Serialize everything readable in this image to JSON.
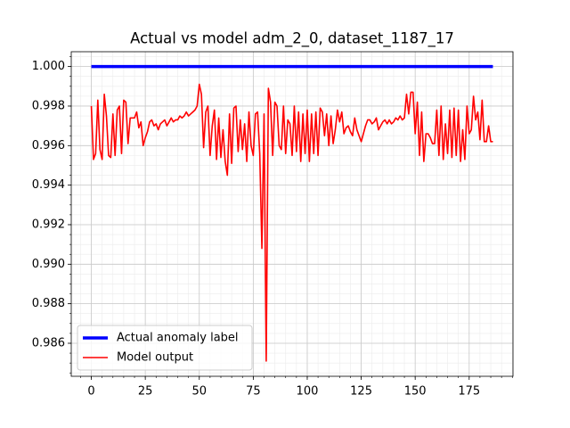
{
  "chart_data": {
    "type": "line",
    "title": "Actual vs model adm_2_0, dataset_1187_17",
    "x": [
      0,
      1,
      2,
      3,
      4,
      5,
      6,
      7,
      8,
      9,
      10,
      11,
      12,
      13,
      14,
      15,
      16,
      17,
      18,
      19,
      20,
      21,
      22,
      23,
      24,
      25,
      26,
      27,
      28,
      29,
      30,
      31,
      32,
      33,
      34,
      35,
      36,
      37,
      38,
      39,
      40,
      41,
      42,
      43,
      44,
      45,
      46,
      47,
      48,
      49,
      50,
      51,
      52,
      53,
      54,
      55,
      56,
      57,
      58,
      59,
      60,
      61,
      62,
      63,
      64,
      65,
      66,
      67,
      68,
      69,
      70,
      71,
      72,
      73,
      74,
      75,
      76,
      77,
      78,
      79,
      80,
      81,
      82,
      83,
      84,
      85,
      86,
      87,
      88,
      89,
      90,
      91,
      92,
      93,
      94,
      95,
      96,
      97,
      98,
      99,
      100,
      101,
      102,
      103,
      104,
      105,
      106,
      107,
      108,
      109,
      110,
      111,
      112,
      113,
      114,
      115,
      116,
      117,
      118,
      119,
      120,
      121,
      122,
      123,
      124,
      125,
      126,
      127,
      128,
      129,
      130,
      131,
      132,
      133,
      134,
      135,
      136,
      137,
      138,
      139,
      140,
      141,
      142,
      143,
      144,
      145,
      146,
      147,
      148,
      149,
      150,
      151,
      152,
      153,
      154,
      155,
      156,
      157,
      158,
      159,
      160,
      161,
      162,
      163,
      164,
      165,
      166,
      167,
      168,
      169,
      170,
      171,
      172,
      173,
      174,
      175,
      176,
      177,
      178,
      179,
      180,
      181,
      182,
      183,
      184,
      185,
      186
    ],
    "series": [
      {
        "name": "Actual anomaly label",
        "color": "#0000ff",
        "values": [
          1,
          1,
          1,
          1,
          1,
          1,
          1,
          1,
          1,
          1,
          1,
          1,
          1,
          1,
          1,
          1,
          1,
          1,
          1,
          1,
          1,
          1,
          1,
          1,
          1,
          1,
          1,
          1,
          1,
          1,
          1,
          1,
          1,
          1,
          1,
          1,
          1,
          1,
          1,
          1,
          1,
          1,
          1,
          1,
          1,
          1,
          1,
          1,
          1,
          1,
          1,
          1,
          1,
          1,
          1,
          1,
          1,
          1,
          1,
          1,
          1,
          1,
          1,
          1,
          1,
          1,
          1,
          1,
          1,
          1,
          1,
          1,
          1,
          1,
          1,
          1,
          1,
          1,
          1,
          1,
          1,
          1,
          1,
          1,
          1,
          1,
          1,
          1,
          1,
          1,
          1,
          1,
          1,
          1,
          1,
          1,
          1,
          1,
          1,
          1,
          1,
          1,
          1,
          1,
          1,
          1,
          1,
          1,
          1,
          1,
          1,
          1,
          1,
          1,
          1,
          1,
          1,
          1,
          1,
          1,
          1,
          1,
          1,
          1,
          1,
          1,
          1,
          1,
          1,
          1,
          1,
          1,
          1,
          1,
          1,
          1,
          1,
          1,
          1,
          1,
          1,
          1,
          1,
          1,
          1,
          1,
          1,
          1,
          1,
          1,
          1,
          1,
          1,
          1,
          1,
          1,
          1,
          1,
          1,
          1,
          1,
          1,
          1,
          1,
          1,
          1,
          1,
          1,
          1,
          1,
          1,
          1,
          1,
          1,
          1,
          1,
          1,
          1,
          1,
          1,
          1,
          1,
          1,
          1,
          1,
          1,
          1
        ]
      },
      {
        "name": "Model output",
        "color": "#ff0000",
        "values": [
          0.998,
          0.9953,
          0.9956,
          0.9983,
          0.9958,
          0.9953,
          0.9986,
          0.9975,
          0.9955,
          0.9954,
          0.9976,
          0.9955,
          0.9978,
          0.998,
          0.9956,
          0.9983,
          0.9982,
          0.9961,
          0.9974,
          0.9974,
          0.9974,
          0.9977,
          0.9969,
          0.9972,
          0.996,
          0.9964,
          0.9967,
          0.9972,
          0.9973,
          0.997,
          0.9971,
          0.9968,
          0.9971,
          0.9972,
          0.9973,
          0.997,
          0.9972,
          0.9974,
          0.9972,
          0.9973,
          0.9973,
          0.9975,
          0.9974,
          0.9975,
          0.9977,
          0.9975,
          0.9976,
          0.9977,
          0.9978,
          0.998,
          0.9991,
          0.9986,
          0.9959,
          0.9977,
          0.998,
          0.9955,
          0.997,
          0.9978,
          0.9953,
          0.9974,
          0.9954,
          0.9968,
          0.9952,
          0.9945,
          0.9976,
          0.9951,
          0.9979,
          0.998,
          0.9957,
          0.9973,
          0.9958,
          0.9971,
          0.9952,
          0.9977,
          0.996,
          0.9955,
          0.9976,
          0.9977,
          0.9956,
          0.9908,
          0.9976,
          0.9851,
          0.9989,
          0.9982,
          0.9955,
          0.9982,
          0.998,
          0.996,
          0.9958,
          0.998,
          0.9956,
          0.9973,
          0.9971,
          0.9955,
          0.998,
          0.9957,
          0.9977,
          0.9952,
          0.9976,
          0.9956,
          0.9978,
          0.9952,
          0.9976,
          0.9956,
          0.9977,
          0.9955,
          0.9979,
          0.9977,
          0.9965,
          0.9976,
          0.996,
          0.9975,
          0.9961,
          0.9968,
          0.9978,
          0.9972,
          0.9977,
          0.9966,
          0.9969,
          0.997,
          0.9967,
          0.9965,
          0.9974,
          0.9968,
          0.9965,
          0.9962,
          0.9966,
          0.997,
          0.9973,
          0.9973,
          0.9971,
          0.9972,
          0.9974,
          0.9968,
          0.997,
          0.9972,
          0.9973,
          0.9971,
          0.9973,
          0.9971,
          0.9972,
          0.9974,
          0.9973,
          0.9975,
          0.9973,
          0.9974,
          0.9986,
          0.9976,
          0.9987,
          0.9987,
          0.9966,
          0.9982,
          0.9955,
          0.9977,
          0.9952,
          0.9966,
          0.9966,
          0.9964,
          0.9961,
          0.9961,
          0.9978,
          0.9955,
          0.998,
          0.9953,
          0.9971,
          0.9956,
          0.9978,
          0.9954,
          0.9979,
          0.9955,
          0.9978,
          0.9952,
          0.9968,
          0.9953,
          0.998,
          0.9966,
          0.9968,
          0.9985,
          0.9973,
          0.9977,
          0.9963,
          0.9983,
          0.9962,
          0.9962,
          0.997,
          0.9962,
          0.9962
        ]
      }
    ],
    "xlim": [
      -9.3,
      195.3
    ],
    "ylim": [
      0.98433,
      1.00075
    ],
    "xticks": [
      0,
      25,
      50,
      75,
      100,
      125,
      150,
      175
    ],
    "yticks": [
      0.986,
      0.988,
      {
        "value": 0.99,
        "label": "0.990"
      },
      0.992,
      0.994,
      0.996,
      0.998,
      {
        "value": 1,
        "label": "1.000"
      }
    ],
    "grid": true,
    "minor_grid": true,
    "legend": "lower left"
  }
}
